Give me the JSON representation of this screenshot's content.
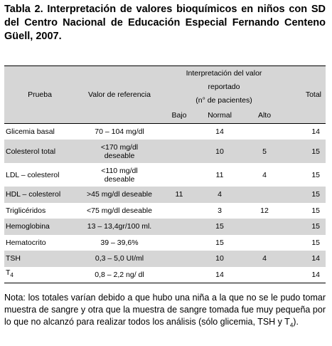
{
  "title": "Tabla 2.  Interpretación de valores bioquímicos en niños con SD del Centro Nacional de Educación Especial Fernando Centeno Güell, 2007.",
  "table": {
    "header": {
      "prueba": "Prueba",
      "valor": "Valor de referencia",
      "interpretacion": [
        "Interpretación del valor",
        "reportado",
        "(n° de pacientes)"
      ],
      "bajo": "Bajo",
      "normal": "Normal",
      "alto": "Alto",
      "total": "Total"
    },
    "rows": [
      {
        "prueba": "Glicemia basal",
        "valor": [
          "70 – 104 mg/dl"
        ],
        "bajo": null,
        "normal": 14,
        "alto": null,
        "total": 14
      },
      {
        "prueba": "Colesterol total",
        "valor": [
          "<170 mg/dl",
          "deseable"
        ],
        "bajo": null,
        "normal": 10,
        "alto": 5,
        "total": 15
      },
      {
        "prueba": "LDL – colesterol",
        "valor": [
          "<110 mg/dl",
          "deseable"
        ],
        "bajo": null,
        "normal": 11,
        "alto": 4,
        "total": 15
      },
      {
        "prueba": "HDL – colesterol",
        "valor": [
          ">45 mg/dl deseable"
        ],
        "bajo": 11,
        "normal": 4,
        "alto": null,
        "total": 15
      },
      {
        "prueba": "Triglicéridos",
        "valor": [
          "<75 mg/dl deseable"
        ],
        "bajo": null,
        "normal": 3,
        "alto": 12,
        "total": 15
      },
      {
        "prueba": "Hemoglobina",
        "valor": [
          "13 – 13,4gr/100 ml."
        ],
        "bajo": null,
        "normal": 15,
        "alto": null,
        "total": 15
      },
      {
        "prueba": "Hematocrito",
        "valor": [
          "39 – 39,6%"
        ],
        "bajo": null,
        "normal": 15,
        "alto": null,
        "total": 15
      },
      {
        "prueba": "TSH",
        "valor": [
          "0,3 – 5,0 UI/ml"
        ],
        "bajo": null,
        "normal": 10,
        "alto": 4,
        "total": 14
      },
      {
        "prueba": "T",
        "prueba_sub": "4",
        "valor": [
          "0,8 – 2,2 ng/ dl"
        ],
        "bajo": null,
        "normal": 14,
        "alto": null,
        "total": 14
      }
    ]
  },
  "note": {
    "before": "Nota: los totales varían debido a que hubo una niña a la que no se le pudo tomar muestra de sangre y otra que la muestra de sangre tomada fue muy pequeña por lo que no alcanzó para realizar todos los análisis (sólo glicemia, TSH y T",
    "sub": "4",
    "after": ")."
  }
}
